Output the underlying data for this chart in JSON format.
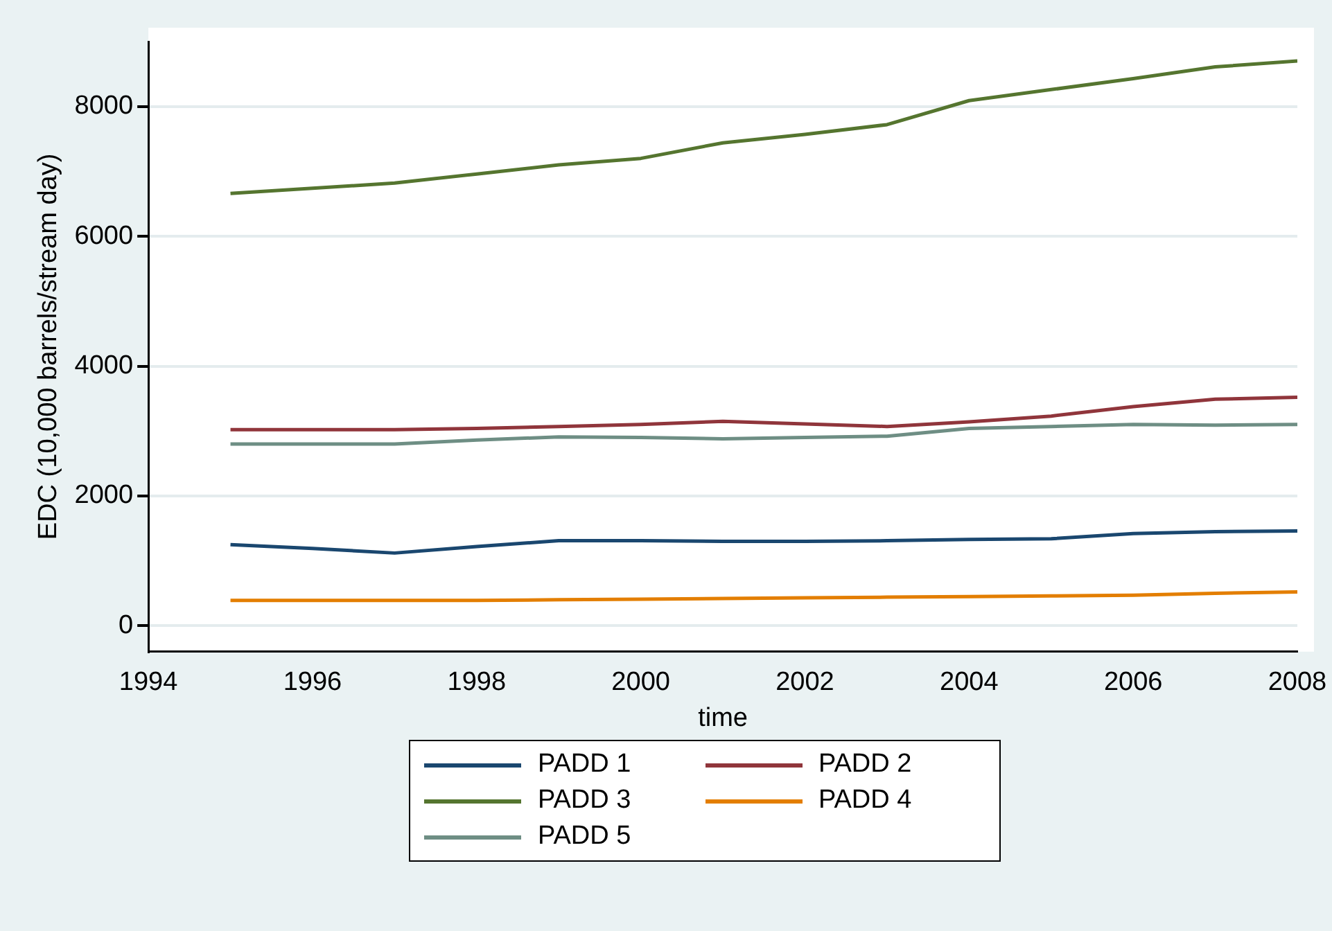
{
  "chart_data": {
    "type": "line",
    "xlabel": "time",
    "ylabel": "EDC (10,000 barrels/stream day)",
    "x": [
      1995,
      1996,
      1997,
      1998,
      1999,
      2000,
      2001,
      2002,
      2003,
      2004,
      2005,
      2006,
      2007,
      2008
    ],
    "xlim": [
      1994,
      2008
    ],
    "xticks": [
      1994,
      1996,
      1998,
      2000,
      2002,
      2004,
      2006,
      2008
    ],
    "ylim": [
      -400,
      9000
    ],
    "yticks": [
      0,
      2000,
      4000,
      6000,
      8000
    ],
    "grid": "y",
    "legend": "bottom",
    "marker": "none",
    "line_style": "solid",
    "series": [
      {
        "name": "PADD 1",
        "color": "#1a476f",
        "values": [
          1250,
          1190,
          1120,
          1220,
          1310,
          1310,
          1300,
          1300,
          1310,
          1330,
          1340,
          1420,
          1450,
          1460
        ]
      },
      {
        "name": "PADD 2",
        "color": "#90353b",
        "values": [
          3020,
          3020,
          3020,
          3040,
          3070,
          3100,
          3150,
          3110,
          3070,
          3140,
          3230,
          3375,
          3490,
          3520
        ]
      },
      {
        "name": "PADD 3",
        "color": "#55752f",
        "values": [
          6660,
          6740,
          6820,
          6960,
          7100,
          7200,
          7440,
          7570,
          7720,
          8090,
          8260,
          8430,
          8610,
          8700
        ]
      },
      {
        "name": "PADD 4",
        "color": "#e37e00",
        "values": [
          390,
          390,
          390,
          390,
          400,
          410,
          420,
          430,
          440,
          450,
          460,
          470,
          500,
          520
        ]
      },
      {
        "name": "PADD 5",
        "color": "#6e8e84",
        "values": [
          2800,
          2800,
          2800,
          2860,
          2910,
          2900,
          2880,
          2900,
          2920,
          3040,
          3070,
          3100,
          3090,
          3100
        ]
      }
    ]
  }
}
